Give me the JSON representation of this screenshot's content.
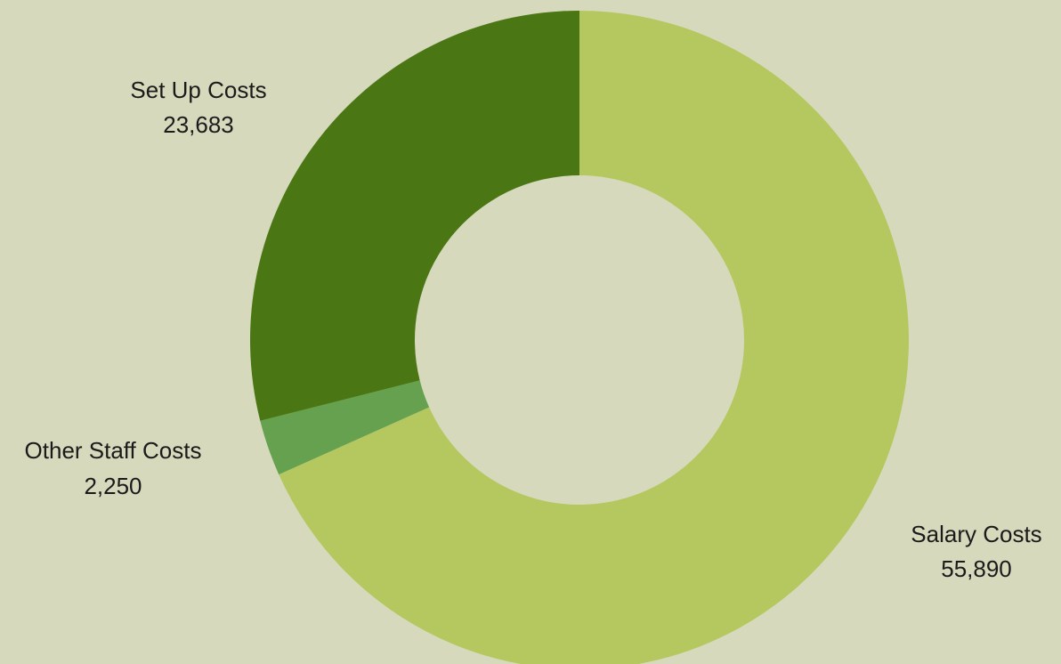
{
  "chart_data": {
    "type": "pie",
    "style": "donut",
    "slices": [
      {
        "label": "Salary Costs",
        "value": 55890,
        "value_label": "55,890",
        "color": "#b5c85f"
      },
      {
        "label": "Other Staff Costs",
        "value": 2250,
        "value_label": "2,250",
        "color": "#66a150"
      },
      {
        "label": "Set Up Costs",
        "value": 23683,
        "value_label": "23,683",
        "color": "#4a7713"
      }
    ],
    "start_angle": "top",
    "direction": "clockwise",
    "background_color": "#d6d9bc"
  }
}
